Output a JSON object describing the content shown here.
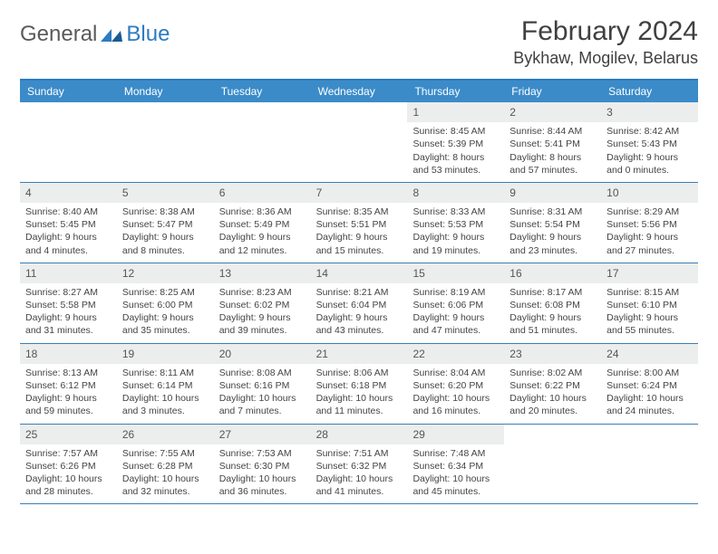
{
  "logo": {
    "text1": "General",
    "text2": "Blue"
  },
  "title": "February 2024",
  "location": "Bykhaw, Mogilev, Belarus",
  "colors": {
    "header_bar": "#3b8bc9",
    "header_border": "#2d7bc0",
    "week_border": "#3b7fb5",
    "daynum_bg": "#eceded",
    "text": "#444444",
    "logo_gray": "#5a5a5a",
    "logo_blue": "#2d7bc0"
  },
  "typography": {
    "month_title_size": 30,
    "location_size": 18,
    "dayhead_size": 12,
    "daynum_size": 12,
    "body_size": 10.5
  },
  "day_names": [
    "Sunday",
    "Monday",
    "Tuesday",
    "Wednesday",
    "Thursday",
    "Friday",
    "Saturday"
  ],
  "weeks": [
    [
      null,
      null,
      null,
      null,
      {
        "n": "1",
        "sr": "8:45 AM",
        "ss": "5:39 PM",
        "dl": "8 hours and 53 minutes."
      },
      {
        "n": "2",
        "sr": "8:44 AM",
        "ss": "5:41 PM",
        "dl": "8 hours and 57 minutes."
      },
      {
        "n": "3",
        "sr": "8:42 AM",
        "ss": "5:43 PM",
        "dl": "9 hours and 0 minutes."
      }
    ],
    [
      {
        "n": "4",
        "sr": "8:40 AM",
        "ss": "5:45 PM",
        "dl": "9 hours and 4 minutes."
      },
      {
        "n": "5",
        "sr": "8:38 AM",
        "ss": "5:47 PM",
        "dl": "9 hours and 8 minutes."
      },
      {
        "n": "6",
        "sr": "8:36 AM",
        "ss": "5:49 PM",
        "dl": "9 hours and 12 minutes."
      },
      {
        "n": "7",
        "sr": "8:35 AM",
        "ss": "5:51 PM",
        "dl": "9 hours and 15 minutes."
      },
      {
        "n": "8",
        "sr": "8:33 AM",
        "ss": "5:53 PM",
        "dl": "9 hours and 19 minutes."
      },
      {
        "n": "9",
        "sr": "8:31 AM",
        "ss": "5:54 PM",
        "dl": "9 hours and 23 minutes."
      },
      {
        "n": "10",
        "sr": "8:29 AM",
        "ss": "5:56 PM",
        "dl": "9 hours and 27 minutes."
      }
    ],
    [
      {
        "n": "11",
        "sr": "8:27 AM",
        "ss": "5:58 PM",
        "dl": "9 hours and 31 minutes."
      },
      {
        "n": "12",
        "sr": "8:25 AM",
        "ss": "6:00 PM",
        "dl": "9 hours and 35 minutes."
      },
      {
        "n": "13",
        "sr": "8:23 AM",
        "ss": "6:02 PM",
        "dl": "9 hours and 39 minutes."
      },
      {
        "n": "14",
        "sr": "8:21 AM",
        "ss": "6:04 PM",
        "dl": "9 hours and 43 minutes."
      },
      {
        "n": "15",
        "sr": "8:19 AM",
        "ss": "6:06 PM",
        "dl": "9 hours and 47 minutes."
      },
      {
        "n": "16",
        "sr": "8:17 AM",
        "ss": "6:08 PM",
        "dl": "9 hours and 51 minutes."
      },
      {
        "n": "17",
        "sr": "8:15 AM",
        "ss": "6:10 PM",
        "dl": "9 hours and 55 minutes."
      }
    ],
    [
      {
        "n": "18",
        "sr": "8:13 AM",
        "ss": "6:12 PM",
        "dl": "9 hours and 59 minutes."
      },
      {
        "n": "19",
        "sr": "8:11 AM",
        "ss": "6:14 PM",
        "dl": "10 hours and 3 minutes."
      },
      {
        "n": "20",
        "sr": "8:08 AM",
        "ss": "6:16 PM",
        "dl": "10 hours and 7 minutes."
      },
      {
        "n": "21",
        "sr": "8:06 AM",
        "ss": "6:18 PM",
        "dl": "10 hours and 11 minutes."
      },
      {
        "n": "22",
        "sr": "8:04 AM",
        "ss": "6:20 PM",
        "dl": "10 hours and 16 minutes."
      },
      {
        "n": "23",
        "sr": "8:02 AM",
        "ss": "6:22 PM",
        "dl": "10 hours and 20 minutes."
      },
      {
        "n": "24",
        "sr": "8:00 AM",
        "ss": "6:24 PM",
        "dl": "10 hours and 24 minutes."
      }
    ],
    [
      {
        "n": "25",
        "sr": "7:57 AM",
        "ss": "6:26 PM",
        "dl": "10 hours and 28 minutes."
      },
      {
        "n": "26",
        "sr": "7:55 AM",
        "ss": "6:28 PM",
        "dl": "10 hours and 32 minutes."
      },
      {
        "n": "27",
        "sr": "7:53 AM",
        "ss": "6:30 PM",
        "dl": "10 hours and 36 minutes."
      },
      {
        "n": "28",
        "sr": "7:51 AM",
        "ss": "6:32 PM",
        "dl": "10 hours and 41 minutes."
      },
      {
        "n": "29",
        "sr": "7:48 AM",
        "ss": "6:34 PM",
        "dl": "10 hours and 45 minutes."
      },
      null,
      null
    ]
  ],
  "labels": {
    "sunrise": "Sunrise: ",
    "sunset": "Sunset: ",
    "daylight": "Daylight: "
  }
}
